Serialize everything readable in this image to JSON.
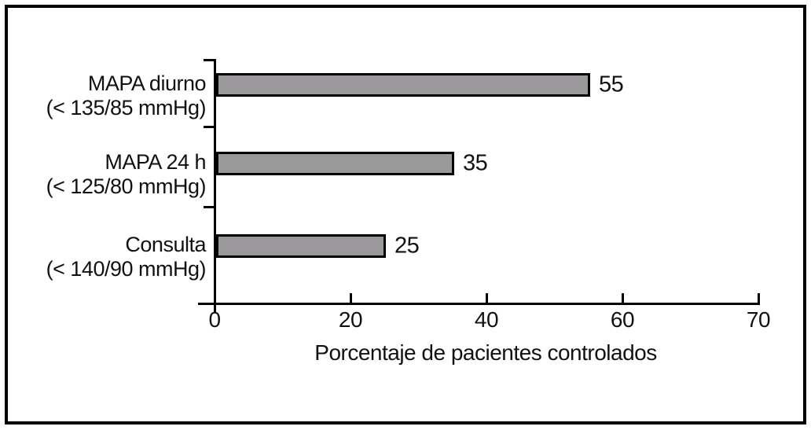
{
  "figure": {
    "background_color": "#ffffff",
    "border_color": "#000000"
  },
  "chart_data": {
    "type": "bar",
    "orientation": "horizontal",
    "title": "",
    "categories": [
      {
        "name": "MAPA diurno",
        "threshold": "(< 135/85 mmHg)"
      },
      {
        "name": "MAPA 24 h",
        "threshold": "(< 125/80 mmHg)"
      },
      {
        "name": "Consulta",
        "threshold": "(< 140/90 mmHg)"
      }
    ],
    "values": [
      55,
      35,
      25
    ],
    "value_labels": [
      "55",
      "35",
      "25"
    ],
    "xlabel": "Porcentaje de pacientes controlados",
    "xtick_labels": [
      "0",
      "20",
      "40",
      "60",
      "70"
    ],
    "xlim": [
      0,
      70
    ],
    "grid": false,
    "legend": false,
    "equal_tick_spacing": true,
    "bar_color": "#9a989b",
    "bar_border_color": "#000000",
    "axis_color": "#000000"
  }
}
